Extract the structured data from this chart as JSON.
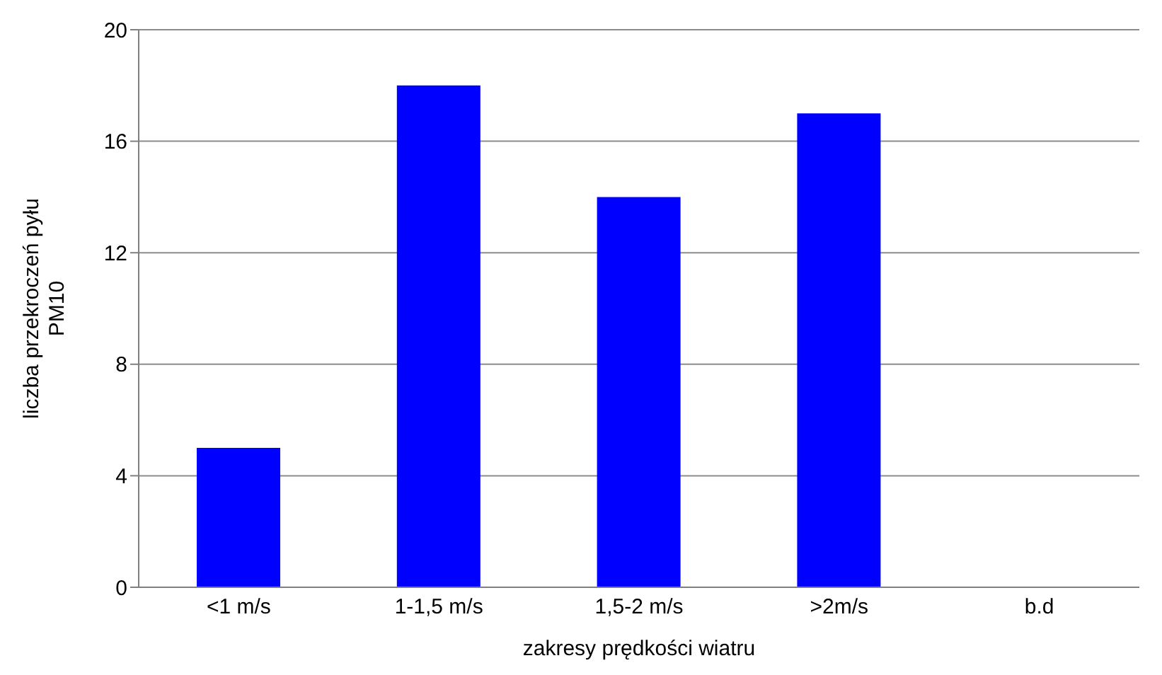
{
  "chart_data": {
    "type": "bar",
    "xlabel": "zakresy prędkości wiatru",
    "ylabel": "liczba przekroczeń pyłu\nPM10",
    "categories": [
      "<1 m/s",
      "1-1,5 m/s",
      "1,5-2 m/s",
      ">2m/s",
      "b.d"
    ],
    "values": [
      5,
      18,
      14,
      17,
      null
    ],
    "color": "#0000ff",
    "ylim": [
      0,
      20
    ],
    "yticks": [
      0,
      4,
      8,
      12,
      16,
      20
    ],
    "grid": "y",
    "legend": false
  }
}
